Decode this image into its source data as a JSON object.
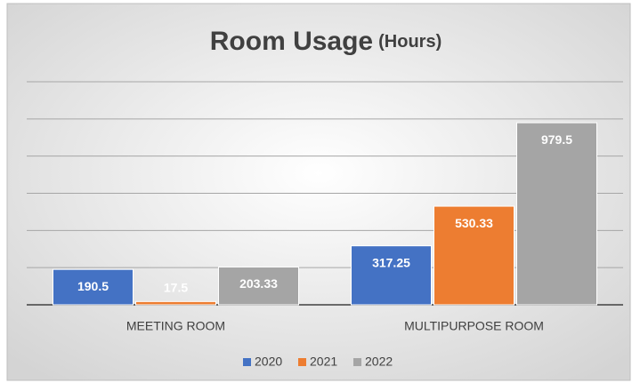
{
  "chart_data": {
    "type": "bar",
    "title": "Room Usage",
    "subtitle": "(Hours)",
    "categories": [
      "MEETING ROOM",
      "MULTIPURPOSE ROOM"
    ],
    "series": [
      {
        "name": "2020",
        "color": "#4472c4",
        "values": [
          190.5,
          317.25
        ]
      },
      {
        "name": "2021",
        "color": "#ed7d31",
        "values": [
          17.5,
          530.33
        ]
      },
      {
        "name": "2022",
        "color": "#a5a5a5",
        "values": [
          203.33,
          979.5
        ]
      }
    ],
    "ylim": [
      0,
      1200
    ],
    "yticks": [
      0,
      200,
      400,
      600,
      800,
      1000,
      1200
    ],
    "grid": true,
    "legend": "bottom"
  }
}
